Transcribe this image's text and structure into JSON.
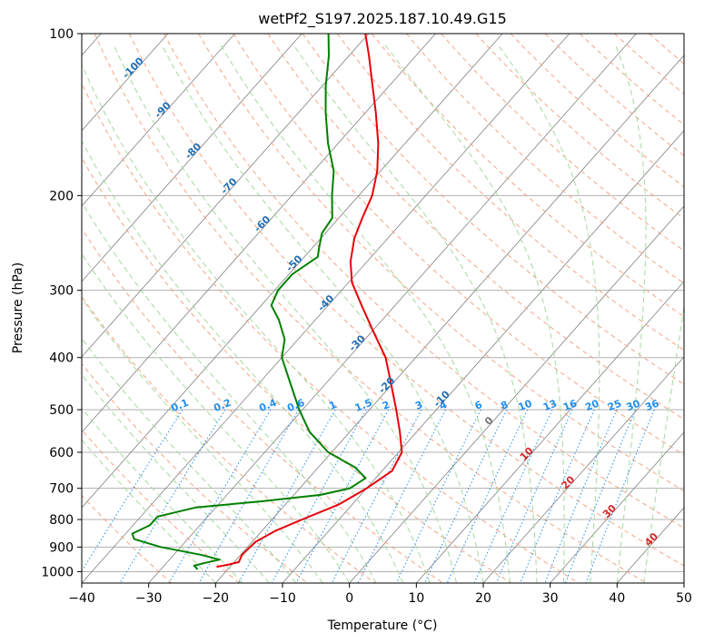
{
  "chart_data": {
    "type": "line",
    "title": "wetPf2_S197.2025.187.10.49.G15",
    "xlabel": "Temperature (°C)",
    "ylabel": "Pressure (hPa)",
    "xlim": [
      -40,
      50
    ],
    "ylim": [
      1050,
      100
    ],
    "y_scale": "log",
    "skew": true,
    "grid": true,
    "x_ticks": [
      -40,
      -30,
      -20,
      -10,
      0,
      10,
      20,
      30,
      40,
      50
    ],
    "y_ticks": [
      100,
      200,
      300,
      400,
      500,
      600,
      700,
      800,
      900,
      1000
    ],
    "series": [
      {
        "color": "#e8000b",
        "points": [
          {
            "p": 980,
            "t": -22.0
          },
          {
            "p": 970,
            "t": -20.5
          },
          {
            "p": 960,
            "t": -19.3
          },
          {
            "p": 930,
            "t": -19.8
          },
          {
            "p": 880,
            "t": -19.5
          },
          {
            "p": 840,
            "t": -18.0
          },
          {
            "p": 800,
            "t": -15.5
          },
          {
            "p": 750,
            "t": -12.0
          },
          {
            "p": 700,
            "t": -10.0
          },
          {
            "p": 650,
            "t": -8.5
          },
          {
            "p": 600,
            "t": -9.5
          },
          {
            "p": 550,
            "t": -12.5
          },
          {
            "p": 500,
            "t": -16.0
          },
          {
            "p": 450,
            "t": -20.0
          },
          {
            "p": 400,
            "t": -24.5
          },
          {
            "p": 360,
            "t": -29.5
          },
          {
            "p": 320,
            "t": -35.0
          },
          {
            "p": 290,
            "t": -39.5
          },
          {
            "p": 265,
            "t": -42.5
          },
          {
            "p": 240,
            "t": -45.0
          },
          {
            "p": 220,
            "t": -46.5
          },
          {
            "p": 200,
            "t": -48.0
          },
          {
            "p": 180,
            "t": -50.5
          },
          {
            "p": 160,
            "t": -54.0
          },
          {
            "p": 140,
            "t": -58.5
          },
          {
            "p": 125,
            "t": -62.5
          },
          {
            "p": 110,
            "t": -67.0
          },
          {
            "p": 100,
            "t": -70.5
          }
        ]
      },
      {
        "color": "#008000",
        "points": [
          {
            "p": 990,
            "t": -24.5
          },
          {
            "p": 975,
            "t": -25.5
          },
          {
            "p": 965,
            "t": -24.5
          },
          {
            "p": 950,
            "t": -22.5
          },
          {
            "p": 930,
            "t": -26.0
          },
          {
            "p": 900,
            "t": -33.0
          },
          {
            "p": 870,
            "t": -38.0
          },
          {
            "p": 850,
            "t": -39.0
          },
          {
            "p": 820,
            "t": -37.5
          },
          {
            "p": 790,
            "t": -37.5
          },
          {
            "p": 760,
            "t": -33.0
          },
          {
            "p": 740,
            "t": -24.0
          },
          {
            "p": 720,
            "t": -16.0
          },
          {
            "p": 700,
            "t": -12.5
          },
          {
            "p": 670,
            "t": -11.5
          },
          {
            "p": 640,
            "t": -14.5
          },
          {
            "p": 600,
            "t": -20.5
          },
          {
            "p": 550,
            "t": -26.0
          },
          {
            "p": 500,
            "t": -30.5
          },
          {
            "p": 450,
            "t": -35.0
          },
          {
            "p": 400,
            "t": -40.0
          },
          {
            "p": 370,
            "t": -42.0
          },
          {
            "p": 340,
            "t": -45.5
          },
          {
            "p": 320,
            "t": -48.5
          },
          {
            "p": 300,
            "t": -49.5
          },
          {
            "p": 280,
            "t": -49.5
          },
          {
            "p": 260,
            "t": -48.0
          },
          {
            "p": 250,
            "t": -49.0
          },
          {
            "p": 235,
            "t": -50.5
          },
          {
            "p": 220,
            "t": -51.0
          },
          {
            "p": 200,
            "t": -54.0
          },
          {
            "p": 180,
            "t": -57.0
          },
          {
            "p": 160,
            "t": -61.5
          },
          {
            "p": 140,
            "t": -66.0
          },
          {
            "p": 125,
            "t": -69.5
          },
          {
            "p": 110,
            "t": -73.0
          },
          {
            "p": 100,
            "t": -76.0
          }
        ]
      }
    ],
    "dry_adiabat_labels": [
      "-100",
      "-90",
      "-80",
      "-70",
      "-60",
      "-50",
      "-40",
      "-30",
      "-20",
      "-10"
    ],
    "moist_adiabat_labels": [
      "0",
      "10",
      "20",
      "30",
      "40"
    ],
    "mixing_ratio_labels": [
      "0.1",
      "0.2",
      "0.4",
      "0.6",
      "1",
      "1.5",
      "2",
      "3",
      "4",
      "6",
      "8",
      "10",
      "13",
      "16",
      "20",
      "25",
      "30",
      "36"
    ]
  },
  "colors": {
    "temperature": "#e8000b",
    "dewpoint": "#008000",
    "dry_adiabat": "#f4a582",
    "moist_adiabat": "#a6d8a0",
    "mixing_ratio": "#1f8ef1",
    "isotherm": "#808080",
    "grid": "#b0b0b0",
    "dry_label": "#1f6fb4",
    "moist_label": "#d62728"
  }
}
